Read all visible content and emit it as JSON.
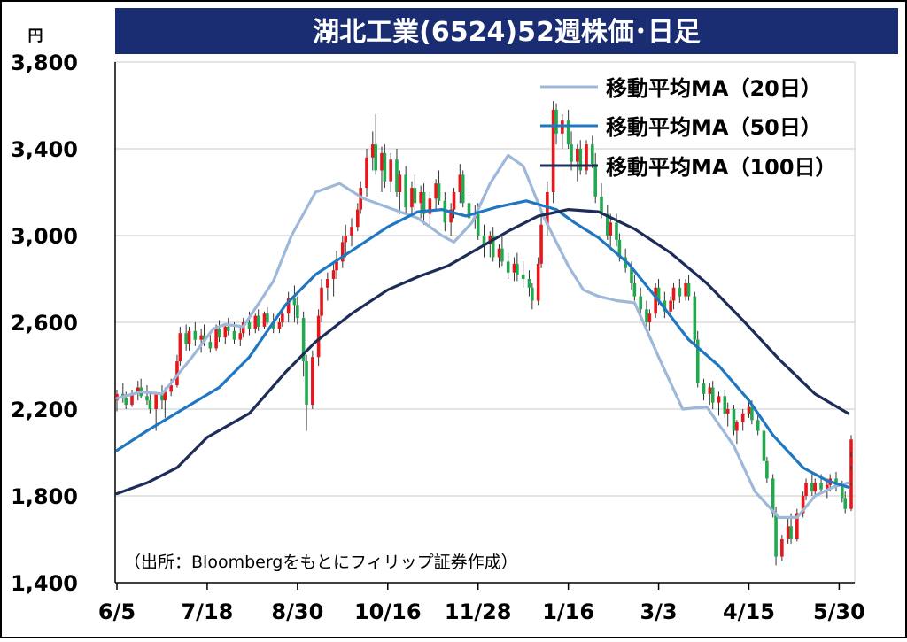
{
  "chart_data": {
    "type": "candlestick",
    "title": "湖北工業(6524)52週株価･日足",
    "unit_label": "円",
    "source_note": "（出所：Bloombergをもとにフィリップ証券作成）",
    "ylim": [
      1400,
      3800
    ],
    "y_ticks": [
      "3,800",
      "3,400",
      "3,000",
      "2,600",
      "2,200",
      "1,800",
      "1,400"
    ],
    "y_tick_values": [
      3800,
      3400,
      3000,
      2600,
      2200,
      1800,
      1400
    ],
    "x_tick_labels": [
      "6/5",
      "7/18",
      "8/30",
      "10/16",
      "11/28",
      "1/16",
      "3/3",
      "4/15",
      "5/30"
    ],
    "trading_days": 245,
    "x_tick_day_index": [
      0,
      30,
      60,
      90,
      120,
      150,
      180,
      210,
      240
    ],
    "grid": true,
    "legend_position": "top-right",
    "up_color": "#e8161b",
    "down_color": "#22a94f",
    "series": [
      {
        "name": "移動平均MA（20日）",
        "color": "#9db8d9",
        "points": [
          [
            0,
            2250
          ],
          [
            8,
            2280
          ],
          [
            15,
            2270
          ],
          [
            25,
            2440
          ],
          [
            32,
            2570
          ],
          [
            36,
            2590
          ],
          [
            42,
            2580
          ],
          [
            52,
            2790
          ],
          [
            58,
            3000
          ],
          [
            66,
            3200
          ],
          [
            74,
            3240
          ],
          [
            82,
            3170
          ],
          [
            92,
            3120
          ],
          [
            100,
            3080
          ],
          [
            108,
            3000
          ],
          [
            112,
            2970
          ],
          [
            118,
            3060
          ],
          [
            124,
            3240
          ],
          [
            130,
            3370
          ],
          [
            135,
            3320
          ],
          [
            142,
            3080
          ],
          [
            150,
            2860
          ],
          [
            155,
            2750
          ],
          [
            160,
            2720
          ],
          [
            166,
            2700
          ],
          [
            172,
            2690
          ],
          [
            180,
            2440
          ],
          [
            188,
            2200
          ],
          [
            196,
            2210
          ],
          [
            205,
            2030
          ],
          [
            212,
            1820
          ],
          [
            220,
            1700
          ],
          [
            226,
            1700
          ],
          [
            232,
            1800
          ],
          [
            238,
            1840
          ],
          [
            243,
            1860
          ]
        ]
      },
      {
        "name": "移動平均MA（50日）",
        "color": "#1f77c2",
        "points": [
          [
            0,
            2010
          ],
          [
            10,
            2100
          ],
          [
            22,
            2200
          ],
          [
            34,
            2300
          ],
          [
            44,
            2440
          ],
          [
            56,
            2680
          ],
          [
            66,
            2820
          ],
          [
            78,
            2930
          ],
          [
            90,
            3040
          ],
          [
            100,
            3110
          ],
          [
            108,
            3120
          ],
          [
            116,
            3090
          ],
          [
            126,
            3130
          ],
          [
            136,
            3160
          ],
          [
            146,
            3120
          ],
          [
            152,
            3060
          ],
          [
            160,
            2990
          ],
          [
            170,
            2870
          ],
          [
            180,
            2700
          ],
          [
            190,
            2520
          ],
          [
            200,
            2400
          ],
          [
            210,
            2240
          ],
          [
            218,
            2080
          ],
          [
            228,
            1930
          ],
          [
            236,
            1870
          ],
          [
            243,
            1840
          ]
        ]
      },
      {
        "name": "移動平均MA（100日）",
        "color": "#1b2d58",
        "points": [
          [
            0,
            1810
          ],
          [
            10,
            1860
          ],
          [
            20,
            1930
          ],
          [
            30,
            2070
          ],
          [
            44,
            2180
          ],
          [
            56,
            2370
          ],
          [
            66,
            2510
          ],
          [
            78,
            2640
          ],
          [
            90,
            2750
          ],
          [
            100,
            2810
          ],
          [
            110,
            2860
          ],
          [
            120,
            2940
          ],
          [
            130,
            3020
          ],
          [
            140,
            3090
          ],
          [
            150,
            3120
          ],
          [
            160,
            3110
          ],
          [
            172,
            3030
          ],
          [
            184,
            2920
          ],
          [
            196,
            2780
          ],
          [
            208,
            2610
          ],
          [
            220,
            2430
          ],
          [
            232,
            2270
          ],
          [
            243,
            2180
          ]
        ]
      }
    ],
    "candles_ohlc": [
      [
        2240,
        2290,
        2190,
        2270
      ],
      [
        2270,
        2320,
        2230,
        2250
      ],
      [
        2250,
        2280,
        2200,
        2220
      ],
      [
        2220,
        2290,
        2210,
        2270
      ],
      [
        2270,
        2330,
        2240,
        2300
      ],
      [
        2300,
        2340,
        2250,
        2260
      ],
      [
        2260,
        2310,
        2220,
        2240
      ],
      [
        2240,
        2280,
        2180,
        2200
      ],
      [
        2200,
        2280,
        2100,
        2270
      ],
      [
        2270,
        2310,
        2200,
        2240
      ],
      [
        2240,
        2300,
        2160,
        2280
      ],
      [
        2280,
        2340,
        2260,
        2310
      ],
      [
        2310,
        2450,
        2300,
        2420
      ],
      [
        2420,
        2580,
        2400,
        2550
      ],
      [
        2550,
        2590,
        2470,
        2500
      ],
      [
        2500,
        2580,
        2470,
        2560
      ],
      [
        2560,
        2600,
        2490,
        2520
      ],
      [
        2520,
        2570,
        2460,
        2540
      ],
      [
        2540,
        2590,
        2490,
        2510
      ],
      [
        2510,
        2560,
        2460,
        2480
      ],
      [
        2480,
        2590,
        2470,
        2570
      ],
      [
        2570,
        2610,
        2510,
        2530
      ],
      [
        2530,
        2590,
        2500,
        2580
      ],
      [
        2580,
        2620,
        2540,
        2560
      ],
      [
        2560,
        2600,
        2500,
        2520
      ],
      [
        2520,
        2580,
        2490,
        2550
      ],
      [
        2550,
        2620,
        2530,
        2600
      ],
      [
        2600,
        2650,
        2540,
        2570
      ],
      [
        2570,
        2640,
        2550,
        2630
      ],
      [
        2630,
        2660,
        2560,
        2580
      ],
      [
        2580,
        2650,
        2570,
        2640
      ],
      [
        2640,
        2670,
        2590,
        2600
      ],
      [
        2600,
        2640,
        2550,
        2570
      ],
      [
        2570,
        2620,
        2550,
        2600
      ],
      [
        2600,
        2660,
        2580,
        2640
      ],
      [
        2640,
        2740,
        2600,
        2710
      ],
      [
        2710,
        2770,
        2600,
        2680
      ],
      [
        2680,
        2720,
        2590,
        2620
      ],
      [
        2620,
        2650,
        2350,
        2420
      ],
      [
        2420,
        2450,
        2100,
        2220
      ],
      [
        2220,
        2470,
        2200,
        2440
      ],
      [
        2440,
        2660,
        2400,
        2630
      ],
      [
        2630,
        2800,
        2600,
        2760
      ],
      [
        2760,
        2830,
        2700,
        2800
      ],
      [
        2800,
        2880,
        2720,
        2840
      ],
      [
        2840,
        2930,
        2800,
        2880
      ],
      [
        2880,
        3000,
        2850,
        2970
      ],
      [
        2970,
        3050,
        2900,
        3000
      ],
      [
        3000,
        3080,
        2950,
        3040
      ],
      [
        3040,
        3150,
        3020,
        3120
      ],
      [
        3120,
        3250,
        3100,
        3220
      ],
      [
        3220,
        3400,
        3180,
        3360
      ],
      [
        3360,
        3480,
        3300,
        3420
      ],
      [
        3420,
        3560,
        3280,
        3300
      ],
      [
        3300,
        3410,
        3200,
        3380
      ],
      [
        3380,
        3420,
        3220,
        3250
      ],
      [
        3250,
        3380,
        3200,
        3350
      ],
      [
        3350,
        3400,
        3180,
        3200
      ],
      [
        3200,
        3300,
        3100,
        3280
      ],
      [
        3280,
        3320,
        3100,
        3130
      ],
      [
        3130,
        3250,
        3100,
        3220
      ],
      [
        3220,
        3280,
        3100,
        3150
      ],
      [
        3150,
        3230,
        3080,
        3200
      ],
      [
        3200,
        3240,
        3050,
        3100
      ],
      [
        3100,
        3200,
        3050,
        3170
      ],
      [
        3170,
        3260,
        3120,
        3240
      ],
      [
        3240,
        3300,
        3140,
        3160
      ],
      [
        3160,
        3200,
        3020,
        3060
      ],
      [
        3060,
        3150,
        3000,
        3120
      ],
      [
        3120,
        3220,
        3080,
        3200
      ],
      [
        3200,
        3330,
        3150,
        3280
      ],
      [
        3280,
        3300,
        3130,
        3150
      ],
      [
        3150,
        3200,
        3060,
        3080
      ],
      [
        3080,
        3140,
        3030,
        3100
      ],
      [
        3100,
        3150,
        2980,
        3000
      ],
      [
        3000,
        3050,
        2900,
        2960
      ],
      [
        2960,
        3020,
        2900,
        3000
      ],
      [
        3000,
        3040,
        2880,
        2900
      ],
      [
        2900,
        2960,
        2850,
        2940
      ],
      [
        2940,
        3000,
        2860,
        2880
      ],
      [
        2880,
        2920,
        2800,
        2830
      ],
      [
        2830,
        2900,
        2790,
        2870
      ],
      [
        2870,
        2920,
        2790,
        2820
      ],
      [
        2820,
        2880,
        2760,
        2800
      ],
      [
        2800,
        2840,
        2720,
        2760
      ],
      [
        2760,
        2780,
        2660,
        2700
      ],
      [
        2700,
        2900,
        2680,
        2870
      ],
      [
        2870,
        3100,
        2850,
        3050
      ],
      [
        3050,
        3250,
        3000,
        3200
      ],
      [
        3200,
        3620,
        3150,
        3580
      ],
      [
        3580,
        3610,
        3420,
        3470
      ],
      [
        3470,
        3560,
        3400,
        3530
      ],
      [
        3530,
        3580,
        3400,
        3420
      ],
      [
        3420,
        3480,
        3300,
        3340
      ],
      [
        3340,
        3420,
        3250,
        3400
      ],
      [
        3400,
        3440,
        3280,
        3300
      ],
      [
        3300,
        3440,
        3280,
        3420
      ],
      [
        3420,
        3460,
        3310,
        3330
      ],
      [
        3330,
        3380,
        3150,
        3180
      ],
      [
        3180,
        3240,
        3080,
        3100
      ],
      [
        3100,
        3140,
        2980,
        3000
      ],
      [
        3000,
        3100,
        2950,
        3060
      ],
      [
        3060,
        3100,
        2950,
        2980
      ],
      [
        2980,
        3010,
        2880,
        2900
      ],
      [
        2900,
        2940,
        2830,
        2850
      ],
      [
        2850,
        2880,
        2750,
        2780
      ],
      [
        2780,
        2820,
        2700,
        2720
      ],
      [
        2720,
        2760,
        2640,
        2660
      ],
      [
        2660,
        2700,
        2560,
        2600
      ],
      [
        2600,
        2660,
        2560,
        2640
      ],
      [
        2640,
        2780,
        2620,
        2760
      ],
      [
        2760,
        2800,
        2680,
        2700
      ],
      [
        2700,
        2740,
        2620,
        2650
      ],
      [
        2650,
        2720,
        2620,
        2700
      ],
      [
        2700,
        2780,
        2660,
        2760
      ],
      [
        2760,
        2800,
        2690,
        2720
      ],
      [
        2720,
        2800,
        2700,
        2780
      ],
      [
        2780,
        2820,
        2700,
        2720
      ],
      [
        2720,
        2740,
        2500,
        2520
      ],
      [
        2520,
        2560,
        2300,
        2320
      ],
      [
        2320,
        2340,
        2240,
        2270
      ],
      [
        2270,
        2320,
        2220,
        2300
      ],
      [
        2300,
        2330,
        2200,
        2230
      ],
      [
        2230,
        2280,
        2170,
        2260
      ],
      [
        2260,
        2290,
        2160,
        2180
      ],
      [
        2180,
        2230,
        2120,
        2200
      ],
      [
        2200,
        2220,
        2080,
        2100
      ],
      [
        2100,
        2150,
        2040,
        2140
      ],
      [
        2140,
        2200,
        2100,
        2180
      ],
      [
        2180,
        2240,
        2160,
        2210
      ],
      [
        2210,
        2240,
        2130,
        2150
      ],
      [
        2150,
        2180,
        2080,
        2100
      ],
      [
        2100,
        2140,
        1940,
        1960
      ],
      [
        1960,
        1980,
        1860,
        1880
      ],
      [
        1880,
        1900,
        1700,
        1720
      ],
      [
        1720,
        1750,
        1480,
        1520
      ],
      [
        1520,
        1620,
        1500,
        1600
      ],
      [
        1600,
        1700,
        1580,
        1660
      ],
      [
        1660,
        1720,
        1580,
        1600
      ],
      [
        1600,
        1740,
        1590,
        1720
      ],
      [
        1720,
        1820,
        1700,
        1800
      ],
      [
        1800,
        1880,
        1780,
        1860
      ],
      [
        1860,
        1900,
        1800,
        1820
      ],
      [
        1820,
        1880,
        1800,
        1860
      ],
      [
        1860,
        1900,
        1810,
        1830
      ],
      [
        1830,
        1880,
        1790,
        1850
      ],
      [
        1850,
        1900,
        1820,
        1880
      ],
      [
        1880,
        1910,
        1820,
        1840
      ],
      [
        1840,
        1870,
        1770,
        1790
      ],
      [
        1790,
        1820,
        1720,
        1740
      ],
      [
        1740,
        1880,
        1730,
        1860
      ],
      [
        1860,
        1960,
        1850,
        1940
      ],
      [
        1940,
        2020,
        1920,
        2000
      ],
      [
        2000,
        2080,
        1980,
        2060
      ]
    ],
    "candles_drawn_step": 1.625
  }
}
